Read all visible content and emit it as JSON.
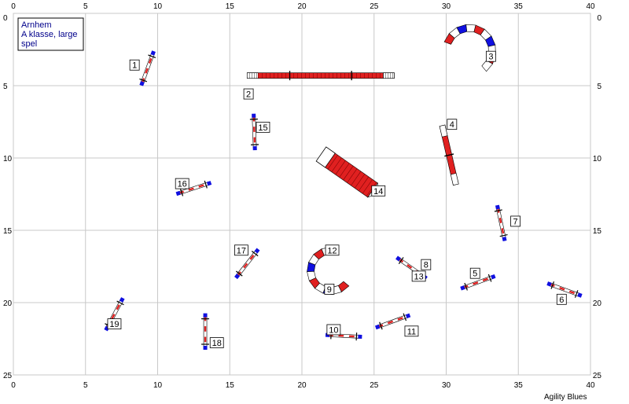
{
  "course": {
    "title_lines": [
      "Arnhem",
      "A klasse, large",
      "spel"
    ],
    "credit": "Agility Blues"
  },
  "grid": {
    "x_ticks": [
      0,
      5,
      10,
      15,
      20,
      25,
      30,
      35,
      40
    ],
    "y_ticks": [
      0,
      5,
      10,
      15,
      20,
      25
    ],
    "x_range": [
      0,
      40
    ],
    "y_range": [
      0,
      25
    ],
    "unit": "m",
    "grid_lines": true
  },
  "colors": {
    "grid": "#c8c8c8",
    "bar_red": "#e02020",
    "bar_blue": "#1010e0",
    "tunnel_red": "#e02020",
    "tunnel_blue": "#1010e0",
    "text": "#000000",
    "title_text": "#00008b"
  },
  "obstacles": [
    {
      "number": "1",
      "type": "jump",
      "x": 9.3,
      "y": 3.8,
      "angle": -70,
      "length": 2.2
    },
    {
      "number": "2",
      "type": "dogwalk",
      "x": 21.3,
      "y": 4.3,
      "angle": 0,
      "length": 10.2
    },
    {
      "number": "3",
      "type": "tunnel-curved",
      "cx": 31.6,
      "cy": 2.6,
      "r": 1.6,
      "start": 200,
      "end": 410
    },
    {
      "number": "4",
      "type": "seesaw",
      "x": 30.2,
      "y": 9.8,
      "angle": 77,
      "length": 4.2
    },
    {
      "number": "5",
      "type": "jump",
      "x": 32.2,
      "y": 18.6,
      "angle": -20,
      "length": 2.2
    },
    {
      "number": "6",
      "type": "jump",
      "x": 38.2,
      "y": 19.1,
      "angle": 20,
      "length": 2.2
    },
    {
      "number": "7",
      "type": "jump",
      "x": 33.8,
      "y": 14.5,
      "angle": 78,
      "length": 2.2
    },
    {
      "number": "8",
      "type": "jump",
      "x": 27.6,
      "y": 17.6,
      "angle": 35,
      "length": 2.2
    },
    {
      "number": "9",
      "type": "tunnel-curved",
      "cx": 22.0,
      "cy": 17.8,
      "r": 1.4,
      "start": 40,
      "end": 270
    },
    {
      "number": "10",
      "type": "jump",
      "x": 22.9,
      "y": 22.3,
      "angle": 3,
      "length": 2.2
    },
    {
      "number": "11",
      "type": "jump",
      "x": 26.3,
      "y": 21.3,
      "angle": -20,
      "length": 2.2
    },
    {
      "number": "12",
      "type": "label-only",
      "x": 22.0,
      "y": 16.5
    },
    {
      "number": "13",
      "type": "label-only",
      "x": 27.6,
      "y": 17.6
    },
    {
      "number": "14",
      "type": "tunnel-chute",
      "x": 23.3,
      "y": 11.1,
      "angle": 35,
      "length": 4.8
    },
    {
      "number": "15",
      "type": "jump",
      "x": 16.7,
      "y": 8.2,
      "angle": 88,
      "length": 2.2
    },
    {
      "number": "16",
      "type": "jump",
      "x": 12.5,
      "y": 12.1,
      "angle": -18,
      "length": 2.2
    },
    {
      "number": "17",
      "type": "jump",
      "x": 16.2,
      "y": 17.3,
      "angle": -52,
      "length": 2.2
    },
    {
      "number": "18",
      "type": "jump",
      "x": 13.3,
      "y": 22.0,
      "angle": 90,
      "length": 2.2
    },
    {
      "number": "19",
      "type": "jump",
      "x": 7.0,
      "y": 20.8,
      "angle": -62,
      "length": 2.2
    }
  ],
  "labels": [
    {
      "number": "1",
      "lx": 8.4,
      "ly": 3.6
    },
    {
      "number": "2",
      "lx": 16.3,
      "ly": 5.6
    },
    {
      "number": "3",
      "lx": 33.1,
      "ly": 3.0
    },
    {
      "number": "4",
      "lx": 30.4,
      "ly": 7.7
    },
    {
      "number": "5",
      "lx": 32.0,
      "ly": 18.0
    },
    {
      "number": "6",
      "lx": 38.0,
      "ly": 19.8
    },
    {
      "number": "7",
      "lx": 34.8,
      "ly": 14.4
    },
    {
      "number": "8",
      "lx": 28.6,
      "ly": 17.4
    },
    {
      "number": "9",
      "lx": 21.9,
      "ly": 19.1
    },
    {
      "number": "10",
      "lx": 22.2,
      "ly": 21.9
    },
    {
      "number": "11",
      "lx": 27.6,
      "ly": 22.0
    },
    {
      "number": "12",
      "lx": 22.1,
      "ly": 16.4
    },
    {
      "number": "13",
      "lx": 28.1,
      "ly": 18.2
    },
    {
      "number": "14",
      "lx": 25.3,
      "ly": 12.3
    },
    {
      "number": "15",
      "lx": 17.3,
      "ly": 7.9
    },
    {
      "number": "16",
      "lx": 11.7,
      "ly": 11.8
    },
    {
      "number": "17",
      "lx": 15.8,
      "ly": 16.4
    },
    {
      "number": "18",
      "lx": 14.1,
      "ly": 22.8
    },
    {
      "number": "19",
      "lx": 7.0,
      "ly": 21.5
    }
  ]
}
